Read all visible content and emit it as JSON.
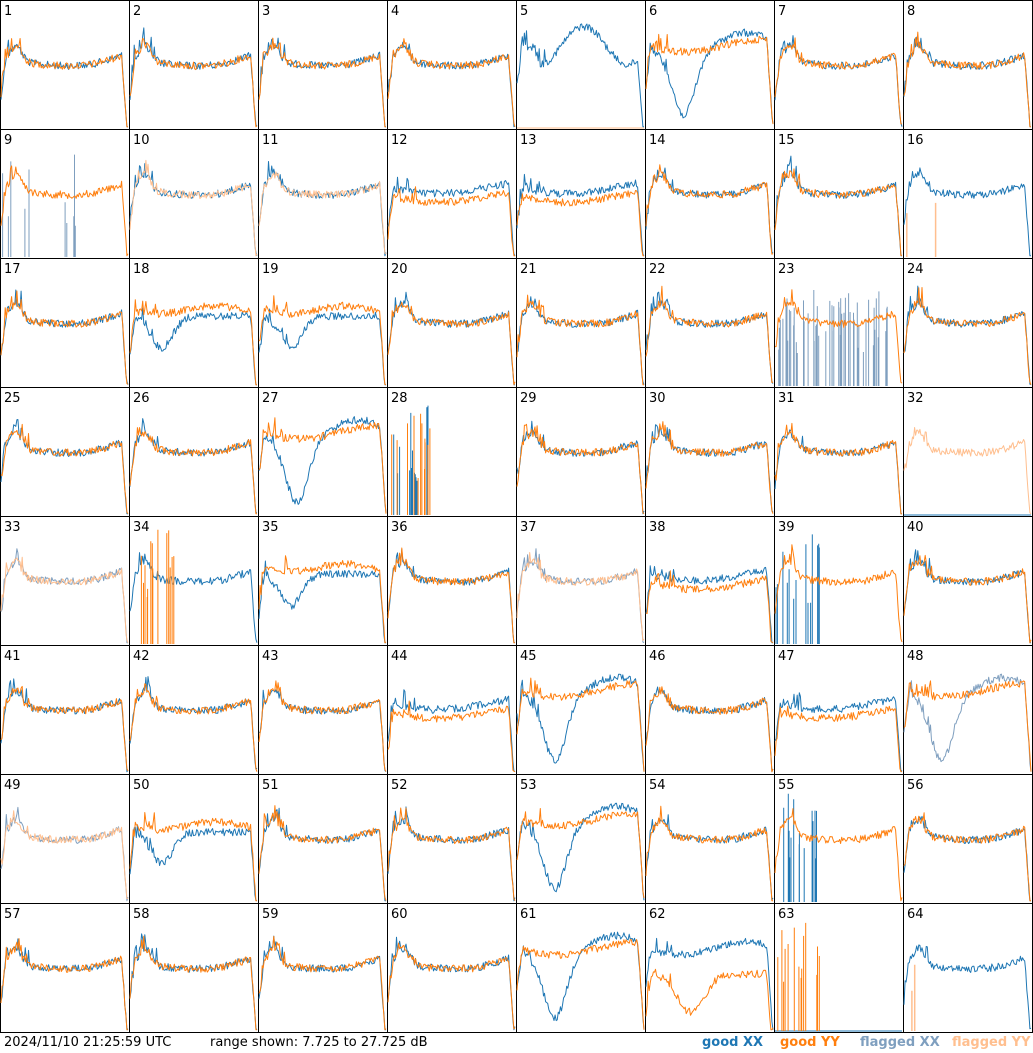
{
  "chart_data": {
    "type": "line",
    "title": "",
    "layout": "8x8 small-multiple grid of spectra, one panel per antenna",
    "panels": [
      "1",
      "2",
      "3",
      "4",
      "5",
      "6",
      "7",
      "8",
      "9",
      "10",
      "11",
      "12",
      "13",
      "14",
      "15",
      "16",
      "17",
      "18",
      "19",
      "20",
      "21",
      "22",
      "23",
      "24",
      "25",
      "26",
      "27",
      "28",
      "29",
      "30",
      "31",
      "32",
      "33",
      "34",
      "35",
      "36",
      "37",
      "38",
      "39",
      "40",
      "41",
      "42",
      "43",
      "44",
      "45",
      "46",
      "47",
      "48",
      "49",
      "50",
      "51",
      "52",
      "53",
      "54",
      "55",
      "56",
      "57",
      "58",
      "59",
      "60",
      "61",
      "62",
      "63",
      "64"
    ],
    "ylim": [
      7.725,
      27.725
    ],
    "yunits": "dB",
    "series": [
      {
        "name": "good XX",
        "color": "#1f77b4"
      },
      {
        "name": "good YY",
        "color": "#ff7f0e"
      },
      {
        "name": "flagged XX",
        "color": "#7f9fbf"
      },
      {
        "name": "flagged YY",
        "color": "#ffbf8f"
      }
    ],
    "panel_styles": {
      "1": {
        "xx": "good",
        "yy": "good",
        "shape": "A"
      },
      "2": {
        "xx": "good",
        "yy": "good",
        "shape": "A"
      },
      "3": {
        "xx": "good",
        "yy": "good",
        "shape": "A"
      },
      "4": {
        "xx": "good",
        "yy": "good",
        "shape": "A"
      },
      "5": {
        "xx": "good",
        "yy": "flat",
        "shape": "B"
      },
      "6": {
        "xx": "good",
        "yy": "good",
        "shape": "C"
      },
      "7": {
        "xx": "good",
        "yy": "good",
        "shape": "A"
      },
      "8": {
        "xx": "good",
        "yy": "good",
        "shape": "A"
      },
      "9": {
        "xx": "spikes-flagged",
        "yy": "good",
        "shape": "A"
      },
      "10": {
        "xx": "good",
        "yy": "flagged",
        "shape": "A"
      },
      "11": {
        "xx": "good",
        "yy": "flagged",
        "shape": "A"
      },
      "12": {
        "xx": "good",
        "yy": "good",
        "shape": "D"
      },
      "13": {
        "xx": "good",
        "yy": "good",
        "shape": "D"
      },
      "14": {
        "xx": "good",
        "yy": "good",
        "shape": "A"
      },
      "15": {
        "xx": "good",
        "yy": "good",
        "shape": "A"
      },
      "16": {
        "xx": "good",
        "yy": "spike-flagged",
        "shape": "A"
      },
      "17": {
        "xx": "good",
        "yy": "good",
        "shape": "A"
      },
      "18": {
        "xx": "good",
        "yy": "good",
        "shape": "E"
      },
      "19": {
        "xx": "good",
        "yy": "good",
        "shape": "E"
      },
      "20": {
        "xx": "good",
        "yy": "good",
        "shape": "A"
      },
      "21": {
        "xx": "good",
        "yy": "good",
        "shape": "A"
      },
      "22": {
        "xx": "good",
        "yy": "good",
        "shape": "A"
      },
      "23": {
        "xx": "noise-flagged",
        "yy": "good",
        "shape": "A"
      },
      "24": {
        "xx": "good",
        "yy": "good",
        "shape": "A"
      },
      "25": {
        "xx": "good",
        "yy": "good",
        "shape": "A"
      },
      "26": {
        "xx": "good",
        "yy": "good",
        "shape": "A"
      },
      "27": {
        "xx": "good",
        "yy": "good",
        "shape": "C"
      },
      "28": {
        "xx": "spikes",
        "yy": "spikes",
        "shape": "F"
      },
      "29": {
        "xx": "good",
        "yy": "good",
        "shape": "A"
      },
      "30": {
        "xx": "good",
        "yy": "good",
        "shape": "A"
      },
      "31": {
        "xx": "good",
        "yy": "good",
        "shape": "A"
      },
      "32": {
        "xx": "flat",
        "yy": "flagged",
        "shape": "A"
      },
      "33": {
        "xx": "flagged",
        "yy": "flagged",
        "shape": "A"
      },
      "34": {
        "xx": "good",
        "yy": "spikes",
        "shape": "A"
      },
      "35": {
        "xx": "good",
        "yy": "good",
        "shape": "E"
      },
      "36": {
        "xx": "good",
        "yy": "good",
        "shape": "A"
      },
      "37": {
        "xx": "flagged",
        "yy": "flagged",
        "shape": "A"
      },
      "38": {
        "xx": "good",
        "yy": "good",
        "shape": "D"
      },
      "39": {
        "xx": "spikes",
        "yy": "good",
        "shape": "A"
      },
      "40": {
        "xx": "good",
        "yy": "good",
        "shape": "A"
      },
      "41": {
        "xx": "good",
        "yy": "good",
        "shape": "A"
      },
      "42": {
        "xx": "good",
        "yy": "good",
        "shape": "A"
      },
      "43": {
        "xx": "good",
        "yy": "good",
        "shape": "A"
      },
      "44": {
        "xx": "good",
        "yy": "good",
        "shape": "D"
      },
      "45": {
        "xx": "good",
        "yy": "good",
        "shape": "C"
      },
      "46": {
        "xx": "good",
        "yy": "good",
        "shape": "A"
      },
      "47": {
        "xx": "good",
        "yy": "good",
        "shape": "D"
      },
      "48": {
        "xx": "flagged",
        "yy": "good",
        "shape": "C"
      },
      "49": {
        "xx": "flagged",
        "yy": "flagged",
        "shape": "A"
      },
      "50": {
        "xx": "good",
        "yy": "good",
        "shape": "E"
      },
      "51": {
        "xx": "good",
        "yy": "good",
        "shape": "A"
      },
      "52": {
        "xx": "good",
        "yy": "good",
        "shape": "A"
      },
      "53": {
        "xx": "good",
        "yy": "good",
        "shape": "C"
      },
      "54": {
        "xx": "good",
        "yy": "good",
        "shape": "A"
      },
      "55": {
        "xx": "spikes",
        "yy": "good",
        "shape": "A"
      },
      "56": {
        "xx": "good",
        "yy": "good",
        "shape": "A"
      },
      "57": {
        "xx": "good",
        "yy": "good",
        "shape": "A"
      },
      "58": {
        "xx": "good",
        "yy": "good",
        "shape": "A"
      },
      "59": {
        "xx": "good",
        "yy": "good",
        "shape": "A"
      },
      "60": {
        "xx": "good",
        "yy": "good",
        "shape": "A"
      },
      "61": {
        "xx": "good",
        "yy": "good",
        "shape": "C"
      },
      "62": {
        "xx": "good",
        "yy": "good",
        "shape": "G"
      },
      "63": {
        "xx": "flat",
        "yy": "spikes",
        "shape": "F"
      },
      "64": {
        "xx": "good",
        "yy": "spike-flagged",
        "shape": "A"
      }
    }
  },
  "footer": {
    "timestamp": "2024/11/10 21:25:59 UTC",
    "range": "range shown: 7.725 to 27.725 dB",
    "legend": {
      "good_xx": {
        "label": "good XX",
        "color": "#1f77b4"
      },
      "good_yy": {
        "label": "good YY",
        "color": "#ff7f0e"
      },
      "flagged_xx": {
        "label": "flagged XX",
        "color": "#7f9fbf"
      },
      "flagged_yy": {
        "label": "flagged YY",
        "color": "#ffbf8f"
      }
    }
  }
}
